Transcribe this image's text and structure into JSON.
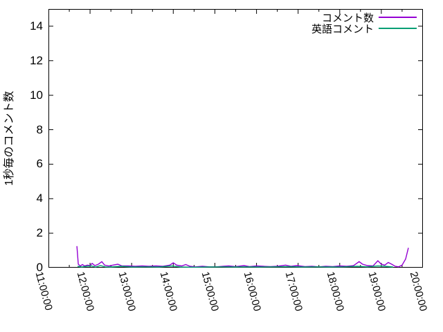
{
  "figure": {
    "background": "#ffffff",
    "border_color": "#000000",
    "text_color": "#000000"
  },
  "y_axis": {
    "label": "1秒毎のコメント数",
    "ticks": [
      0,
      2,
      4,
      6,
      8,
      10,
      12,
      14
    ],
    "min": 0,
    "max": 15
  },
  "x_axis": {
    "tick_labels": [
      "11:00:00",
      "12:00:00",
      "13:00:00",
      "14:00:00",
      "15:00:00",
      "16:00:00",
      "17:00:00",
      "18:00:00",
      "19:00:00",
      "20:00:00"
    ],
    "minor_tick_interval_minutes": 30
  },
  "legend": {
    "entries": [
      {
        "label": "コメント数",
        "color": "#9400d3"
      },
      {
        "label": "英語コメント",
        "color": "#009e73"
      }
    ]
  },
  "chart_data": {
    "type": "line",
    "title": "",
    "xlabel": "",
    "ylabel": "1秒毎のコメント数",
    "x_range": [
      "11:00:00",
      "20:00:00"
    ],
    "ylim": [
      0,
      15
    ],
    "grid": false,
    "legend_position": "top-right-inside",
    "series": [
      {
        "name": "コメント数",
        "color": "#9400d3",
        "points": [
          [
            "11:41",
            1.25
          ],
          [
            "11:43",
            0.2
          ],
          [
            "11:46",
            0.1
          ],
          [
            "11:49",
            0.18
          ],
          [
            "11:52",
            0.1
          ],
          [
            "11:56",
            0.15
          ],
          [
            "12:00",
            0.12
          ],
          [
            "12:03",
            0.25
          ],
          [
            "12:07",
            0.12
          ],
          [
            "12:12",
            0.2
          ],
          [
            "12:17",
            0.35
          ],
          [
            "12:21",
            0.15
          ],
          [
            "12:27",
            0.1
          ],
          [
            "12:33",
            0.15
          ],
          [
            "12:40",
            0.2
          ],
          [
            "12:46",
            0.1
          ],
          [
            "12:55",
            0.1
          ],
          [
            "13:05",
            0.08
          ],
          [
            "13:15",
            0.1
          ],
          [
            "13:25",
            0.08
          ],
          [
            "13:35",
            0.1
          ],
          [
            "13:45",
            0.08
          ],
          [
            "13:55",
            0.15
          ],
          [
            "14:00",
            0.28
          ],
          [
            "14:05",
            0.15
          ],
          [
            "14:12",
            0.1
          ],
          [
            "14:18",
            0.18
          ],
          [
            "14:24",
            0.08
          ],
          [
            "14:32",
            0.05
          ],
          [
            "14:42",
            0.08
          ],
          [
            "14:52",
            0.05
          ],
          [
            "15:02",
            0.05
          ],
          [
            "15:12",
            0.08
          ],
          [
            "15:20",
            0.1
          ],
          [
            "15:30",
            0.06
          ],
          [
            "15:42",
            0.12
          ],
          [
            "15:50",
            0.06
          ],
          [
            "16:00",
            0.1
          ],
          [
            "16:10",
            0.08
          ],
          [
            "16:20",
            0.06
          ],
          [
            "16:30",
            0.08
          ],
          [
            "16:42",
            0.15
          ],
          [
            "16:50",
            0.08
          ],
          [
            "16:58",
            0.12
          ],
          [
            "17:10",
            0.06
          ],
          [
            "17:20",
            0.08
          ],
          [
            "17:30",
            0.05
          ],
          [
            "17:40",
            0.08
          ],
          [
            "17:50",
            0.06
          ],
          [
            "18:00",
            0.1
          ],
          [
            "18:10",
            0.08
          ],
          [
            "18:20",
            0.12
          ],
          [
            "18:28",
            0.35
          ],
          [
            "18:33",
            0.2
          ],
          [
            "18:40",
            0.12
          ],
          [
            "18:48",
            0.1
          ],
          [
            "18:55",
            0.4
          ],
          [
            "19:00",
            0.2
          ],
          [
            "19:05",
            0.15
          ],
          [
            "19:10",
            0.3
          ],
          [
            "19:15",
            0.2
          ],
          [
            "19:20",
            0.08
          ],
          [
            "19:25",
            0.05
          ],
          [
            "19:30",
            0.15
          ],
          [
            "19:35",
            0.5
          ],
          [
            "19:39",
            1.15
          ]
        ]
      },
      {
        "name": "英語コメント",
        "color": "#009e73",
        "points": [
          [
            "11:42",
            0.08
          ],
          [
            "11:48",
            0.04
          ],
          [
            "11:55",
            0.08
          ],
          [
            "12:02",
            0.1
          ],
          [
            "12:08",
            0.04
          ],
          [
            "12:15",
            0.12
          ],
          [
            "12:22",
            0.05
          ],
          [
            "12:30",
            0.04
          ],
          [
            "12:45",
            0.08
          ],
          [
            "13:00",
            0.04
          ],
          [
            "13:20",
            0.05
          ],
          [
            "13:40",
            0.04
          ],
          [
            "13:58",
            0.1
          ],
          [
            "14:10",
            0.04
          ],
          [
            "14:30",
            0.03
          ],
          [
            "14:50",
            0.04
          ],
          [
            "15:10",
            0.05
          ],
          [
            "15:30",
            0.04
          ],
          [
            "15:45",
            0.05
          ],
          [
            "16:05",
            0.04
          ],
          [
            "16:25",
            0.05
          ],
          [
            "16:45",
            0.06
          ],
          [
            "17:05",
            0.04
          ],
          [
            "17:25",
            0.05
          ],
          [
            "17:45",
            0.04
          ],
          [
            "18:05",
            0.05
          ],
          [
            "18:25",
            0.08
          ],
          [
            "18:40",
            0.05
          ],
          [
            "18:55",
            0.1
          ],
          [
            "19:05",
            0.08
          ],
          [
            "19:17",
            0.04
          ]
        ]
      }
    ]
  }
}
